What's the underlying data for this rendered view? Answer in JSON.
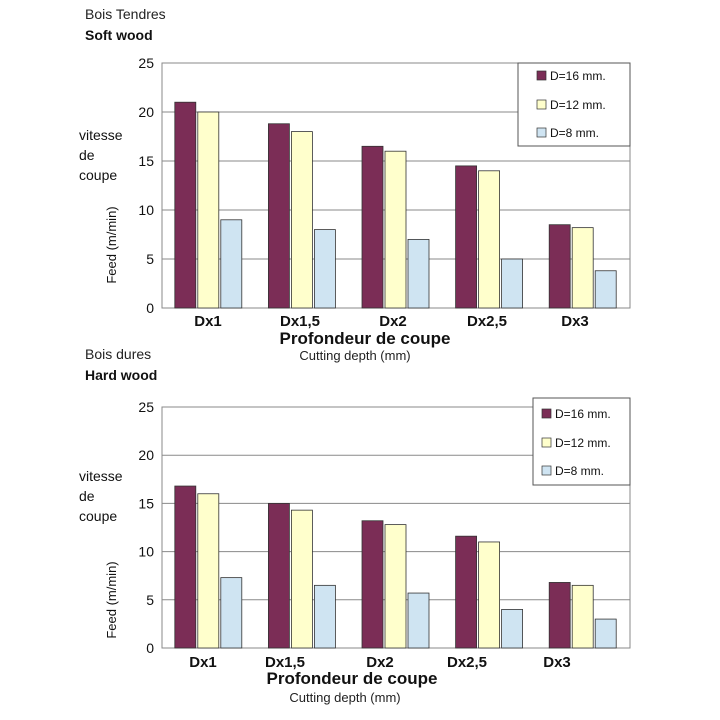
{
  "chart_data": [
    {
      "type": "bar",
      "title": "Bois Tendres",
      "subtitle": "Soft wood",
      "side_label": [
        "vitesse",
        "de",
        "coupe"
      ],
      "ylabel": "Feed (m/min)",
      "xlabel": "Profondeur de coupe",
      "xlabel_sub": "Cutting depth (mm)",
      "categories": [
        "Dx1",
        "Dx1,5",
        "Dx2",
        "Dx2,5",
        "Dx3"
      ],
      "ylim": [
        0,
        25
      ],
      "yticks": [
        "0",
        "5",
        "10",
        "15",
        "20",
        "25"
      ],
      "grid": true,
      "legend_position": "top-right",
      "series": [
        {
          "name": "D=16 mm.",
          "color": "#7b2d56",
          "values": [
            21,
            18.8,
            16.5,
            14.5,
            8.5
          ]
        },
        {
          "name": "D=12 mm.",
          "color": "#ffffcc",
          "values": [
            20,
            18,
            16,
            14,
            8.2
          ]
        },
        {
          "name": "D=8 mm.",
          "color": "#cfe4f2",
          "values": [
            9,
            8,
            7,
            5,
            3.8
          ]
        }
      ]
    },
    {
      "type": "bar",
      "title": "Bois dures",
      "subtitle": "Hard wood",
      "side_label": [
        "vitesse",
        "de",
        "coupe"
      ],
      "ylabel": "Feed (m/min)",
      "xlabel": "Profondeur de coupe",
      "xlabel_sub": "Cutting depth (mm)",
      "categories": [
        "Dx1",
        "Dx1,5",
        "Dx2",
        "Dx2,5",
        "Dx3"
      ],
      "ylim": [
        0,
        25
      ],
      "yticks": [
        "0",
        "5",
        "10",
        "15",
        "20",
        "25"
      ],
      "grid": true,
      "legend_position": "top-right",
      "series": [
        {
          "name": "D=16 mm.",
          "color": "#7b2d56",
          "values": [
            16.8,
            15,
            13.2,
            11.6,
            6.8
          ]
        },
        {
          "name": "D=12 mm.",
          "color": "#ffffcc",
          "values": [
            16,
            14.3,
            12.8,
            11,
            6.5
          ]
        },
        {
          "name": "D=8 mm.",
          "color": "#cfe4f2",
          "values": [
            7.3,
            6.5,
            5.7,
            4,
            3
          ]
        }
      ]
    }
  ]
}
